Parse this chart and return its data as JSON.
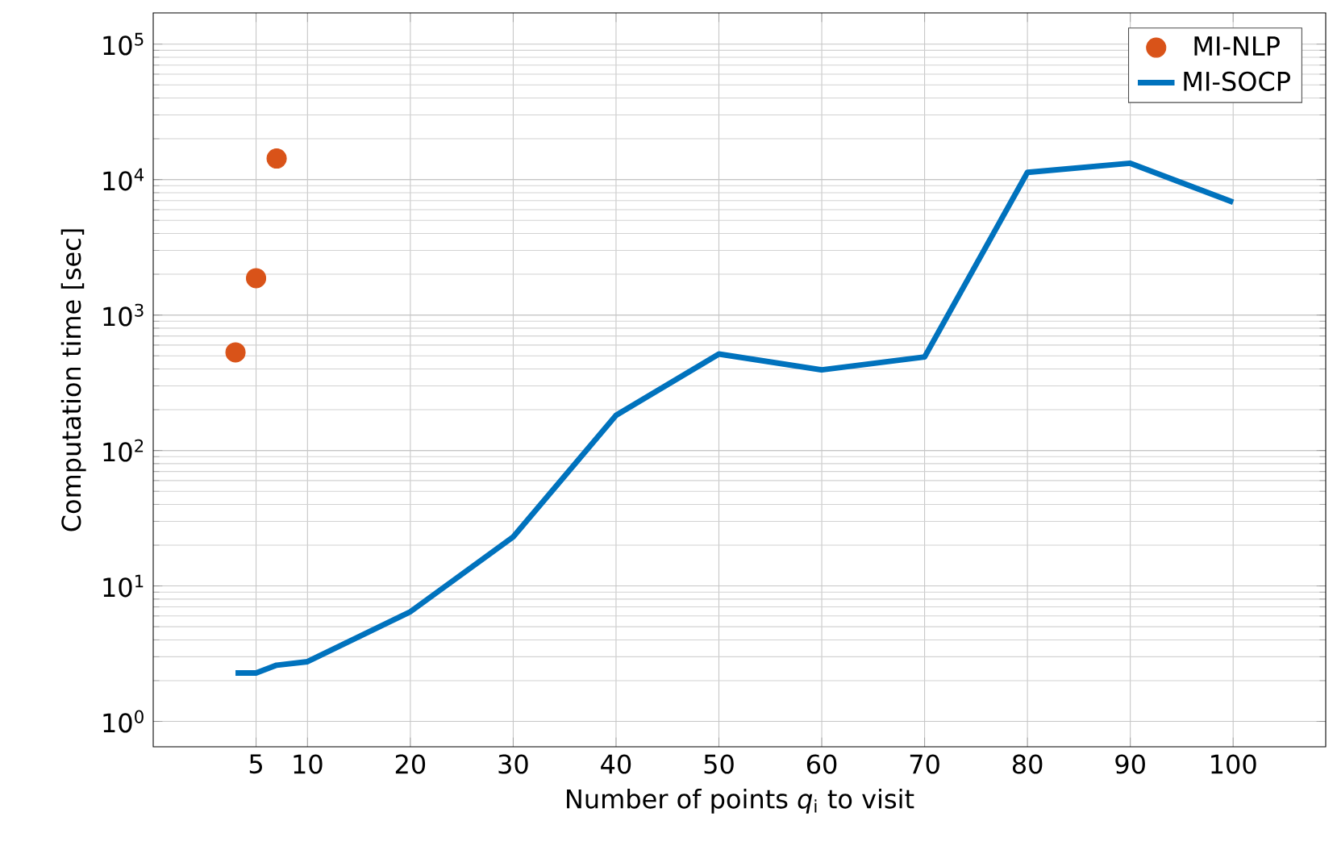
{
  "chart_data": {
    "type": "line",
    "xlabel": "Number of points *q*$_{i}$ to visit",
    "ylabel": "Computation time [sec]",
    "xlim": [
      -5,
      109
    ],
    "xticks": [
      5,
      10,
      20,
      30,
      40,
      50,
      60,
      70,
      80,
      90,
      100
    ],
    "ylim": [
      0.65,
      170000
    ],
    "yticks": [
      {
        "value": 1,
        "label": "10$^{0}$"
      },
      {
        "value": 10,
        "label": "10$^{1}$"
      },
      {
        "value": 100,
        "label": "10$^{2}$"
      },
      {
        "value": 1000,
        "label": "10$^{3}$"
      },
      {
        "value": 10000,
        "label": "10$^{4}$"
      },
      {
        "value": 100000,
        "label": "10$^{5}$"
      }
    ],
    "log": "y",
    "grid": true,
    "legend": "top right",
    "series": [
      {
        "name": "MI-NLP",
        "type": "scatter",
        "marker": "circle",
        "color": "#d95319",
        "x": [
          3,
          5,
          7
        ],
        "values": [
          530,
          1870,
          14300
        ]
      },
      {
        "name": "MI-SOCP",
        "marker": "none",
        "line_style": "solid",
        "color": "#0072bd",
        "x": [
          3,
          5,
          7,
          10,
          20,
          30,
          40,
          50,
          60,
          70,
          80,
          90,
          100
        ],
        "values": [
          2.28,
          2.28,
          2.6,
          2.76,
          6.45,
          23,
          182,
          515,
          394,
          490,
          11300,
          13200,
          6800
        ]
      }
    ]
  }
}
